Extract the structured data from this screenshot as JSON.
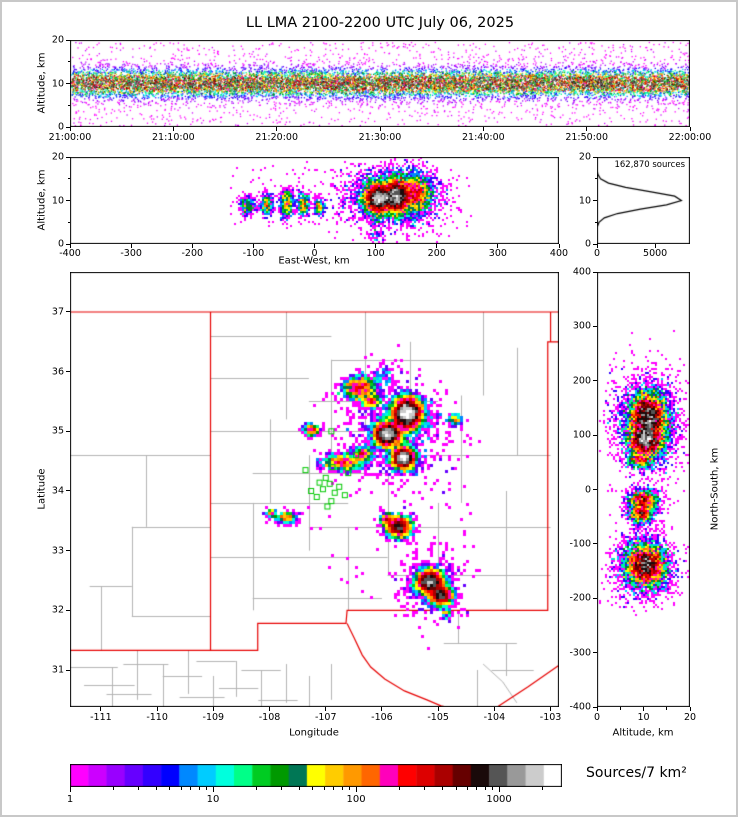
{
  "title": "LL LMA 2100-2200 UTC July 06, 2025",
  "panels": {
    "time_height": {
      "ylabel": "Altitude, km",
      "yticks": [
        0,
        10,
        20
      ],
      "yminor": [
        5,
        15
      ],
      "yrange_km": [
        0,
        20
      ],
      "xtick_labels": [
        "21:00:00",
        "21:10:00",
        "21:20:00",
        "21:30:00",
        "21:40:00",
        "21:50:00",
        "22:00:00"
      ]
    },
    "ew_height": {
      "xlabel": "East-West, km",
      "ylabel": "Altitude, km",
      "xticks": [
        -400,
        -300,
        -200,
        -100,
        0,
        100,
        200,
        300,
        400
      ],
      "yticks": [
        0,
        10,
        20
      ],
      "yminor": [
        5,
        15
      ],
      "xrange_km": [
        -400,
        400
      ],
      "yrange_km": [
        0,
        20
      ]
    },
    "alt_histogram": {
      "annotation": "162,870 sources",
      "xticks": [
        0,
        5000
      ],
      "yticks": [
        0,
        10,
        20
      ],
      "yminor": [
        5,
        15
      ],
      "xrange_count": [
        0,
        8000
      ],
      "yrange_km": [
        0,
        20
      ]
    },
    "plan_view": {
      "xlabel": "Longitude",
      "ylabel": "Latitude",
      "xticks": [
        -111,
        -110,
        -109,
        -108,
        -107,
        -106,
        -105,
        -104,
        -103
      ],
      "yticks": [
        31,
        32,
        33,
        34,
        35,
        36,
        37
      ],
      "xrange_deg": [
        -111.55,
        -102.85
      ],
      "yrange_deg": [
        30.38,
        37.67
      ]
    },
    "ns_height": {
      "xlabel": "Altitude, km",
      "ylabel": "North-South, km",
      "xticks": [
        0,
        10,
        20
      ],
      "xminor": [
        5,
        15
      ],
      "yticks": [
        400,
        300,
        200,
        100,
        0,
        -100,
        -200,
        -300,
        -400
      ],
      "xrange_km": [
        0,
        20
      ],
      "yrange_km": [
        -400,
        400
      ]
    }
  },
  "colorbar": {
    "label": "Sources/7 km²",
    "tick_labels": [
      "1",
      "10",
      "100",
      "1000"
    ],
    "log_decades": 3.44,
    "colors": [
      "#ff00ff",
      "#cc00ff",
      "#9900ff",
      "#6600ff",
      "#3300ff",
      "#0000ff",
      "#0088ff",
      "#00ccff",
      "#00ffdd",
      "#00ff88",
      "#00cc22",
      "#009900",
      "#007755",
      "#ffff00",
      "#ffcc00",
      "#ff9900",
      "#ff6600",
      "#ff00bb",
      "#ff0000",
      "#dd0000",
      "#aa0000",
      "#660000",
      "#1a0a0a",
      "#555555",
      "#999999",
      "#cccccc",
      "#ffffff"
    ]
  },
  "chart_data": [
    {
      "panel": "time_height",
      "type": "scatter",
      "x_axis": "Time (UTC), 21:00:00 to 22:00:00",
      "y_axis": "Altitude, km",
      "x_range_s": [
        0,
        3600
      ],
      "band": {
        "center_km": 10.2,
        "sd_km": 1.9,
        "n_points": 14000,
        "outlier_fraction": 0.12
      }
    },
    {
      "panel": "ew_height",
      "type": "heatmap",
      "x_axis": "East-West, km",
      "y_axis": "Altitude, km",
      "clusters": [
        {
          "x": 105,
          "y": 10.5,
          "sx": 12,
          "sy": 1.8,
          "n": 5200
        },
        {
          "x": 135,
          "y": 11.0,
          "sx": 10,
          "sy": 2.0,
          "n": 4200
        },
        {
          "x": 165,
          "y": 11.5,
          "sx": 13,
          "sy": 2.2,
          "n": 2200
        },
        {
          "x": 130,
          "y": 11.0,
          "sx": 42,
          "sy": 3.8,
          "n": 2200
        },
        {
          "x": -110,
          "y": 8.8,
          "sx": 7,
          "sy": 1.1,
          "n": 260
        },
        {
          "x": -78,
          "y": 9.0,
          "sx": 5,
          "sy": 1.3,
          "n": 330
        },
        {
          "x": -45,
          "y": 9.3,
          "sx": 6,
          "sy": 1.6,
          "n": 520
        },
        {
          "x": -18,
          "y": 9.0,
          "sx": 5,
          "sy": 1.3,
          "n": 380
        },
        {
          "x": 8,
          "y": 8.6,
          "sx": 4,
          "sy": 1.0,
          "n": 220
        },
        {
          "x": 100,
          "y": 4.0,
          "sx": 6,
          "sy": 3.2,
          "n": 130
        },
        {
          "x": 40,
          "y": 11.0,
          "sx": 180,
          "sy": 7.0,
          "n": 160,
          "uniform": true
        }
      ]
    },
    {
      "panel": "alt_histogram",
      "type": "line",
      "x_axis": "Source count",
      "y_axis": "Altitude, km",
      "total_sources": 162870,
      "alt_bins_km": [
        0,
        1,
        2,
        3,
        4,
        5,
        6,
        7,
        8,
        9,
        10,
        11,
        12,
        13,
        14,
        15,
        16,
        17,
        18,
        19,
        20
      ],
      "counts": [
        2,
        3,
        5,
        9,
        36,
        172,
        633,
        1768,
        3736,
        5980,
        7260,
        6682,
        4660,
        2463,
        988,
        300,
        76,
        15,
        5,
        2,
        1
      ]
    },
    {
      "panel": "plan_view",
      "type": "heatmap",
      "x_axis": "Longitude",
      "y_axis": "Latitude",
      "clusters": [
        {
          "x": -105.55,
          "y": 35.3,
          "sx": 0.13,
          "sy": 0.13,
          "n": 5200
        },
        {
          "x": -105.9,
          "y": 34.95,
          "sx": 0.12,
          "sy": 0.1,
          "n": 3200
        },
        {
          "x": -105.62,
          "y": 34.55,
          "sx": 0.1,
          "sy": 0.09,
          "n": 2600
        },
        {
          "x": -105.7,
          "y": 35.0,
          "sx": 0.45,
          "sy": 0.45,
          "n": 800
        },
        {
          "x": -106.4,
          "y": 35.72,
          "sx": 0.14,
          "sy": 0.1,
          "n": 1100
        },
        {
          "x": -106.18,
          "y": 35.5,
          "sx": 0.08,
          "sy": 0.06,
          "n": 300
        },
        {
          "x": -107.25,
          "y": 35.02,
          "sx": 0.07,
          "sy": 0.05,
          "n": 260
        },
        {
          "x": -106.7,
          "y": 34.48,
          "sx": 0.18,
          "sy": 0.07,
          "n": 800
        },
        {
          "x": -106.35,
          "y": 34.62,
          "sx": 0.08,
          "sy": 0.06,
          "n": 350
        },
        {
          "x": -107.7,
          "y": 33.55,
          "sx": 0.1,
          "sy": 0.05,
          "n": 240
        },
        {
          "x": -107.95,
          "y": 33.62,
          "sx": 0.05,
          "sy": 0.04,
          "n": 90
        },
        {
          "x": -105.7,
          "y": 33.4,
          "sx": 0.11,
          "sy": 0.09,
          "n": 1600
        },
        {
          "x": -105.92,
          "y": 33.52,
          "sx": 0.06,
          "sy": 0.05,
          "n": 250
        },
        {
          "x": -105.15,
          "y": 32.48,
          "sx": 0.12,
          "sy": 0.1,
          "n": 2600
        },
        {
          "x": -104.95,
          "y": 32.25,
          "sx": 0.1,
          "sy": 0.08,
          "n": 1400
        },
        {
          "x": -105.05,
          "y": 32.4,
          "sx": 0.3,
          "sy": 0.3,
          "n": 350
        },
        {
          "x": -104.85,
          "y": 31.95,
          "sx": 0.05,
          "sy": 0.04,
          "n": 60
        },
        {
          "x": -106.0,
          "y": 35.95,
          "sx": 0.1,
          "sy": 0.08,
          "n": 70
        },
        {
          "x": -104.7,
          "y": 35.2,
          "sx": 0.06,
          "sy": 0.05,
          "n": 130
        },
        {
          "x": -105.8,
          "y": 34.0,
          "sx": 1.5,
          "sy": 1.8,
          "n": 90,
          "uniform": true
        }
      ],
      "stations_lon_lat": [
        [
          -107.05,
          34.03
        ],
        [
          -106.93,
          34.12
        ],
        [
          -106.84,
          33.97
        ],
        [
          -107.16,
          33.9
        ],
        [
          -106.9,
          33.83
        ],
        [
          -107.0,
          34.22
        ],
        [
          -106.76,
          34.07
        ],
        [
          -107.11,
          34.14
        ],
        [
          -106.97,
          33.74
        ],
        [
          -107.26,
          34.0
        ],
        [
          -106.66,
          33.93
        ],
        [
          -106.88,
          34.4
        ],
        [
          -106.9,
          35.0
        ],
        [
          -106.46,
          34.6
        ],
        [
          -107.36,
          34.35
        ],
        [
          -106.6,
          34.3
        ]
      ],
      "state_borders_lon_lat": [
        [
          [
            -111.55,
            37.0
          ],
          [
            -103.0,
            37.0
          ]
        ],
        [
          [
            -103.0,
            37.0
          ],
          [
            -103.0,
            36.5
          ],
          [
            -103.05,
            36.5
          ],
          [
            -103.05,
            32.0
          ],
          [
            -106.62,
            32.0
          ],
          [
            -106.64,
            31.78
          ],
          [
            -108.21,
            31.78
          ],
          [
            -108.21,
            31.33
          ],
          [
            -109.05,
            31.33
          ],
          [
            -109.05,
            37.0
          ]
        ],
        [
          [
            -111.55,
            31.33
          ],
          [
            -109.05,
            31.33
          ]
        ],
        [
          [
            -103.0,
            37.0
          ],
          [
            -102.85,
            37.0
          ]
        ],
        [
          [
            -103.05,
            36.5
          ],
          [
            -102.85,
            36.5
          ]
        ],
        [
          [
            -106.62,
            31.78
          ],
          [
            -106.5,
            31.55
          ],
          [
            -106.35,
            31.25
          ],
          [
            -106.2,
            31.05
          ],
          [
            -105.95,
            30.85
          ],
          [
            -105.6,
            30.65
          ],
          [
            -105.2,
            30.5
          ],
          [
            -104.95,
            30.4
          ],
          [
            -104.85,
            30.38
          ]
        ],
        [
          [
            -103.95,
            30.38
          ],
          [
            -103.4,
            30.72
          ],
          [
            -102.85,
            31.08
          ]
        ]
      ],
      "county_v": [
        [
          -108.0,
          33.8,
          35.2
        ],
        [
          -107.7,
          35.2,
          37.0
        ],
        [
          -108.3,
          32.0,
          33.8
        ],
        [
          -107.3,
          33.0,
          34.6
        ],
        [
          -106.9,
          34.6,
          36.2
        ],
        [
          -106.6,
          32.0,
          33.4
        ],
        [
          -106.3,
          35.0,
          37.0
        ],
        [
          -105.9,
          32.6,
          34.3
        ],
        [
          -105.5,
          34.3,
          36.5
        ],
        [
          -105.0,
          32.0,
          33.8
        ],
        [
          -104.6,
          33.8,
          35.6
        ],
        [
          -104.2,
          35.6,
          37.0
        ],
        [
          -103.8,
          32.0,
          34.0
        ],
        [
          -103.6,
          34.6,
          36.4
        ],
        [
          -110.2,
          33.4,
          34.6
        ],
        [
          -110.45,
          31.9,
          33.4
        ],
        [
          -111.0,
          31.33,
          32.4
        ],
        [
          -110.8,
          30.38,
          31.05
        ],
        [
          -110.35,
          30.5,
          31.33
        ],
        [
          -109.9,
          30.38,
          31.1
        ],
        [
          -109.45,
          30.6,
          31.33
        ],
        [
          -109.0,
          30.38,
          30.9
        ],
        [
          -108.6,
          30.55,
          31.15
        ],
        [
          -108.15,
          30.38,
          31.0
        ],
        [
          -107.7,
          30.45,
          31.1
        ],
        [
          -107.3,
          30.38,
          30.9
        ],
        [
          -106.9,
          30.5,
          31.1
        ],
        [
          -104.65,
          31.45,
          32.0
        ],
        [
          -103.8,
          30.9,
          31.45
        ],
        [
          -104.3,
          30.38,
          31.0
        ]
      ],
      "county_h": [
        [
          36.6,
          -109.05,
          -106.9
        ],
        [
          36.2,
          -106.9,
          -104.2
        ],
        [
          35.9,
          -109.05,
          -107.3
        ],
        [
          35.5,
          -107.3,
          -105.0
        ],
        [
          35.0,
          -109.05,
          -106.3
        ],
        [
          34.6,
          -106.9,
          -103.0
        ],
        [
          34.3,
          -108.3,
          -105.9
        ],
        [
          33.8,
          -109.05,
          -106.6
        ],
        [
          33.4,
          -107.3,
          -103.0
        ],
        [
          32.9,
          -109.05,
          -105.9
        ],
        [
          32.6,
          -105.9,
          -103.0
        ],
        [
          32.2,
          -108.3,
          -106.0
        ],
        [
          34.6,
          -111.55,
          -109.05
        ],
        [
          33.4,
          -110.45,
          -109.05
        ],
        [
          32.4,
          -111.2,
          -110.45
        ],
        [
          31.9,
          -110.45,
          -109.05
        ],
        [
          31.05,
          -111.55,
          -110.7
        ],
        [
          30.75,
          -111.3,
          -110.4
        ],
        [
          31.1,
          -110.6,
          -109.8
        ],
        [
          30.6,
          -110.9,
          -110.1
        ],
        [
          30.9,
          -109.9,
          -109.2
        ],
        [
          30.55,
          -109.6,
          -108.8
        ],
        [
          31.15,
          -109.3,
          -108.6
        ],
        [
          30.7,
          -108.9,
          -108.2
        ],
        [
          31.0,
          -108.5,
          -107.8
        ],
        [
          30.5,
          -108.2,
          -107.5
        ],
        [
          31.45,
          -104.9,
          -103.6
        ],
        [
          31.0,
          -104.05,
          -103.3
        ]
      ],
      "county_poly": [
        [
          [
            -104.2,
            31.1
          ],
          [
            -103.85,
            30.8
          ],
          [
            -103.6,
            30.45
          ]
        ]
      ]
    },
    {
      "panel": "ns_height",
      "type": "heatmap",
      "x_axis": "Altitude, km",
      "y_axis": "North-South, km",
      "clusters": [
        {
          "x": 11.0,
          "y": 135,
          "sx": 2.0,
          "sy": 22,
          "n": 4800
        },
        {
          "x": 10.5,
          "y": 90,
          "sx": 1.9,
          "sy": 14,
          "n": 3000
        },
        {
          "x": 11.0,
          "y": 120,
          "sx": 3.8,
          "sy": 48,
          "n": 1800
        },
        {
          "x": 9.5,
          "y": 55,
          "sx": 1.5,
          "sy": 8,
          "n": 500
        },
        {
          "x": 10.0,
          "y": -20,
          "sx": 1.6,
          "sy": 10,
          "n": 1100
        },
        {
          "x": 9.5,
          "y": -45,
          "sx": 1.4,
          "sy": 9,
          "n": 800
        },
        {
          "x": 10.5,
          "y": -140,
          "sx": 2.2,
          "sy": 20,
          "n": 4200
        },
        {
          "x": 10.0,
          "y": -140,
          "sx": 3.8,
          "sy": 34,
          "n": 1000
        },
        {
          "x": 10.0,
          "y": 0,
          "sx": 8.0,
          "sy": 230,
          "n": 160,
          "uniform": true
        }
      ]
    }
  ]
}
